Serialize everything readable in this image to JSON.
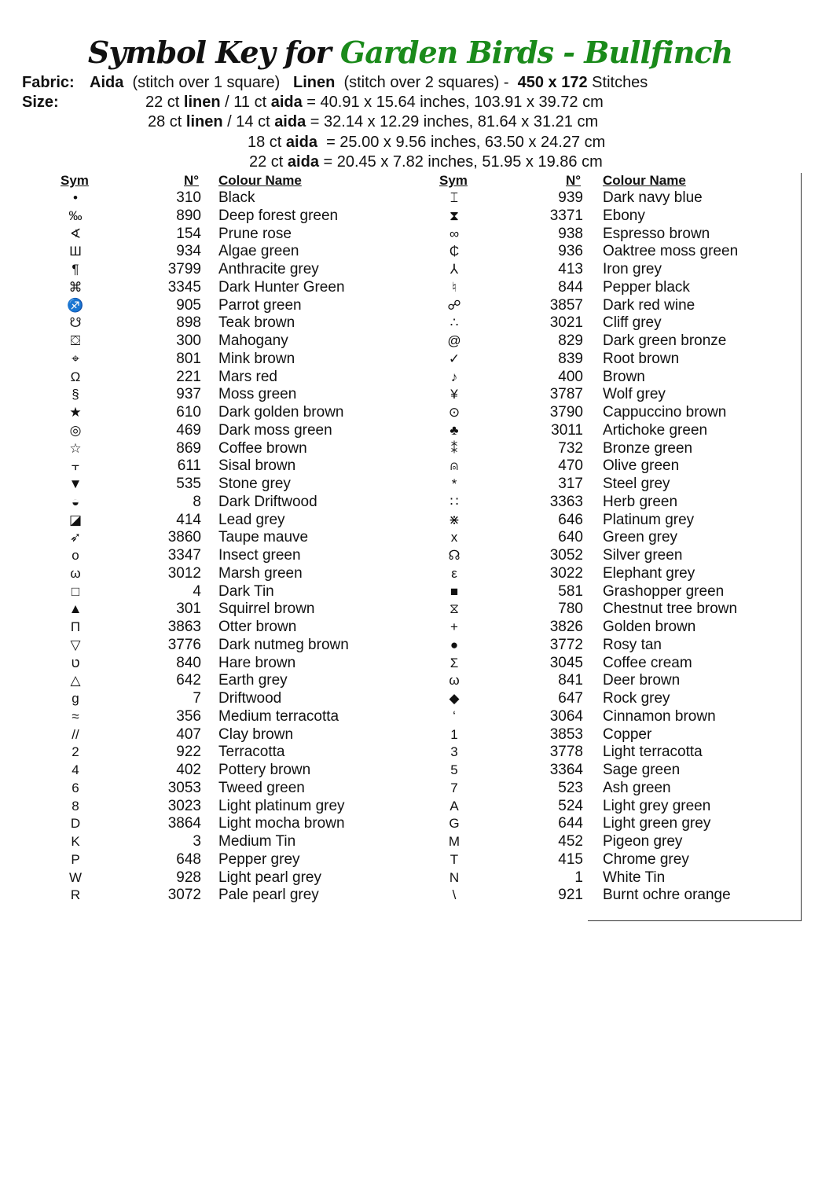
{
  "title": {
    "part1": "Symbol Key for",
    "part2": "Garden Birds - Bullfinch",
    "accent_color": "#1a8a1a"
  },
  "fabric_label": "Fabric:",
  "fabric_line": [
    {
      "t": "Aida",
      "b": true
    },
    {
      "t": "  (stitch over 1 square)   ",
      "b": false
    },
    {
      "t": "Linen",
      "b": true
    },
    {
      "t": "  (stitch over 2 squares) -  ",
      "b": false
    },
    {
      "t": "450 x 172",
      "b": true
    },
    {
      "t": " Stitches",
      "b": false
    }
  ],
  "size_label": "Size:",
  "size_lines": [
    [
      {
        "t": "22 ct ",
        "b": false
      },
      {
        "t": "linen",
        "b": true
      },
      {
        "t": " / 11 ct ",
        "b": false
      },
      {
        "t": "aida",
        "b": true
      },
      {
        "t": " = 40.91 x 15.64 inches, 103.91 x 39.72 cm",
        "b": false
      }
    ],
    [
      {
        "t": "28 ct ",
        "b": false
      },
      {
        "t": "linen",
        "b": true
      },
      {
        "t": " / 14 ct ",
        "b": false
      },
      {
        "t": "aida",
        "b": true
      },
      {
        "t": " = 32.14 x 12.29 inches, 81.64 x 31.21 cm",
        "b": false
      }
    ],
    [
      {
        "t": "18 ct ",
        "b": false
      },
      {
        "t": "aida",
        "b": true
      },
      {
        "t": "  = 25.00 x 9.56 inches, 63.50 x 24.27 cm",
        "b": false
      }
    ],
    [
      {
        "t": "22 ct ",
        "b": false
      },
      {
        "t": "aida",
        "b": true
      },
      {
        "t": " = 20.45 x 7.82 inches, 51.95 x 19.86 cm",
        "b": false
      }
    ]
  ],
  "headers": {
    "sym": "Sym",
    "num": "N°",
    "name": "Colour Name"
  },
  "left": [
    [
      "•",
      "310",
      "Black"
    ],
    [
      "‰",
      "890",
      "Deep forest green"
    ],
    [
      "∢",
      "154",
      "Prune rose"
    ],
    [
      "Ш",
      "934",
      "Algae green"
    ],
    [
      "¶",
      "3799",
      "Anthracite grey"
    ],
    [
      "⌘",
      "3345",
      "Dark Hunter Green"
    ],
    [
      "♐",
      "905",
      "Parrot green"
    ],
    [
      "☋",
      "898",
      "Teak brown"
    ],
    [
      "⛋",
      "300",
      "Mahogany"
    ],
    [
      "⌖",
      "801",
      "Mink brown"
    ],
    [
      "Ω",
      "221",
      "Mars red"
    ],
    [
      "§",
      "937",
      "Moss green"
    ],
    [
      "★",
      "610",
      "Dark golden brown"
    ],
    [
      "◎",
      "469",
      "Dark moss green"
    ],
    [
      "☆",
      "869",
      "Coffee brown"
    ],
    [
      "⫟",
      "611",
      "Sisal brown"
    ],
    [
      "▼",
      "535",
      "Stone grey"
    ],
    [
      "◒",
      "8",
      "Dark Driftwood"
    ],
    [
      "◪",
      "414",
      "Lead grey"
    ],
    [
      "➶",
      "3860",
      "Taupe mauve"
    ],
    [
      "o",
      "3347",
      "Insect green"
    ],
    [
      "ω",
      "3012",
      "Marsh green"
    ],
    [
      "□",
      "4",
      "Dark Tin"
    ],
    [
      "▲",
      "301",
      "Squirrel brown"
    ],
    [
      "Π",
      "3863",
      "Otter brown"
    ],
    [
      "▽",
      "3776",
      "Dark nutmeg brown"
    ],
    [
      "ט",
      "840",
      "Hare brown"
    ],
    [
      "△",
      "642",
      "Earth grey"
    ],
    [
      "g",
      "7",
      "Driftwood"
    ],
    [
      "≈",
      "356",
      "Medium terracotta"
    ],
    [
      "//",
      "407",
      "Clay brown"
    ],
    [
      "2",
      "922",
      "Terracotta"
    ],
    [
      "4",
      "402",
      "Pottery brown"
    ],
    [
      "6",
      "3053",
      "Tweed green"
    ],
    [
      "8",
      "3023",
      "Light platinum grey"
    ],
    [
      "D",
      "3864",
      "Light mocha brown"
    ],
    [
      "K",
      "3",
      "Medium Tin"
    ],
    [
      "P",
      "648",
      "Pepper grey"
    ],
    [
      "W",
      "928",
      "Light pearl grey"
    ],
    [
      "R",
      "3072",
      "Pale pearl grey"
    ]
  ],
  "right": [
    [
      "⌶",
      "939",
      "Dark navy blue"
    ],
    [
      "⧗",
      "3371",
      "Ebony"
    ],
    [
      "∞",
      "938",
      "Espresso brown"
    ],
    [
      "₵",
      "936",
      "Oaktree moss green"
    ],
    [
      "⅄",
      "413",
      "Iron grey"
    ],
    [
      "♮",
      "844",
      "Pepper black"
    ],
    [
      "☍",
      "3857",
      "Dark red wine"
    ],
    [
      "∴",
      "3021",
      "Cliff grey"
    ],
    [
      "@",
      "829",
      "Dark green bronze"
    ],
    [
      "✓",
      "839",
      "Root brown"
    ],
    [
      "♪",
      "400",
      "Brown"
    ],
    [
      "¥",
      "3787",
      "Wolf grey"
    ],
    [
      "⊙",
      "3790",
      "Cappuccino brown"
    ],
    [
      "♣",
      "3011",
      "Artichoke green"
    ],
    [
      "⁑",
      "732",
      "Bronze green"
    ],
    [
      "⍝",
      "470",
      "Olive green"
    ],
    [
      "*",
      "317",
      "Steel grey"
    ],
    [
      "∷",
      "3363",
      "Herb green"
    ],
    [
      "⋇",
      "646",
      "Platinum grey"
    ],
    [
      "x",
      "640",
      "Green grey"
    ],
    [
      "☊",
      "3052",
      "Silver green"
    ],
    [
      "ε",
      "3022",
      "Elephant grey"
    ],
    [
      "■",
      "581",
      "Grashopper green"
    ],
    [
      "⧖",
      "780",
      "Chestnut tree brown"
    ],
    [
      "+",
      "3826",
      "Golden brown"
    ],
    [
      "●",
      "3772",
      "Rosy tan"
    ],
    [
      "Σ",
      "3045",
      "Coffee cream"
    ],
    [
      "ω",
      "841",
      "Deer brown"
    ],
    [
      "◆",
      "647",
      "Rock grey"
    ],
    [
      "ʻ",
      "3064",
      "Cinnamon brown"
    ],
    [
      "1",
      "3853",
      "Copper"
    ],
    [
      "3",
      "3778",
      "Light terracotta"
    ],
    [
      "5",
      "3364",
      "Sage green"
    ],
    [
      "7",
      "523",
      "Ash green"
    ],
    [
      "A",
      "524",
      "Light grey green"
    ],
    [
      "G",
      "644",
      "Light green grey"
    ],
    [
      "M",
      "452",
      "Pigeon grey"
    ],
    [
      "T",
      "415",
      "Chrome grey"
    ],
    [
      "N",
      "1",
      "White Tin"
    ],
    [
      "\\",
      "921",
      "Burnt ochre orange"
    ]
  ]
}
